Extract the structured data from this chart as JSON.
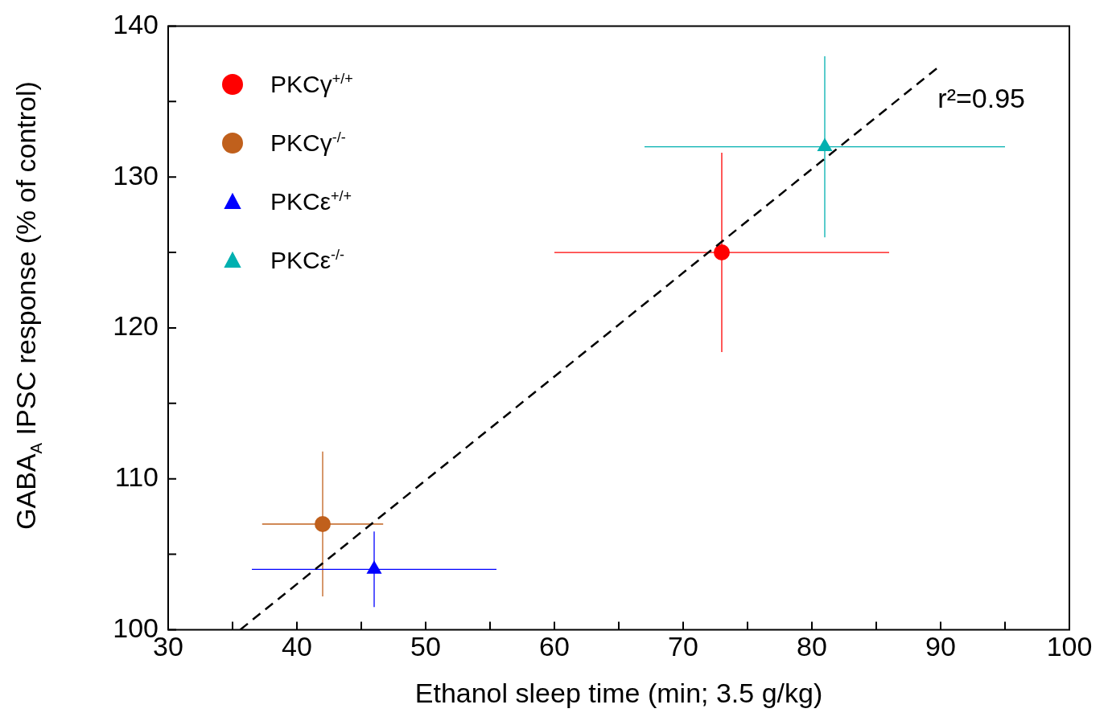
{
  "chart_data": {
    "type": "scatter",
    "xlabel": "Ethanol sleep time (min; 3.5 g/kg)",
    "ylabel": "GABA$_{A}$ IPSC response (% of control)",
    "xlim": [
      30,
      100
    ],
    "ylim": [
      100,
      140
    ],
    "xticks": [
      30,
      {
        "value": 35,
        "label": null
      },
      40,
      {
        "value": 45,
        "label": null
      },
      50,
      {
        "value": 55,
        "label": null
      },
      60,
      {
        "value": 65,
        "label": null
      },
      70,
      {
        "value": 75,
        "label": null
      },
      80,
      {
        "value": 85,
        "label": null
      },
      90,
      {
        "value": 95,
        "label": null
      },
      100
    ],
    "yticks": [
      100,
      {
        "value": 105,
        "label": null
      },
      110,
      {
        "value": 115,
        "label": null
      },
      120,
      {
        "value": 125,
        "label": null
      },
      130,
      {
        "value": 135,
        "label": null
      },
      140
    ],
    "legend": "top left",
    "annotations": [
      "r²=0.95"
    ],
    "series": [
      {
        "name": "PKCγ$^{+/+}$",
        "color": "#ff0000",
        "marker": "circle",
        "x": [
          73
        ],
        "values": [
          125
        ],
        "errors": [
          6.6
        ],
        "xerrors": [
          13
        ]
      },
      {
        "name": "PKCγ$^{-/-}$",
        "color": "#c0601c",
        "marker": "circle",
        "x": [
          42
        ],
        "values": [
          107
        ],
        "errors": [
          4.8
        ],
        "xerrors": [
          4.7
        ]
      },
      {
        "name": "PKCε$^{+/+}$",
        "color": "#0000ff",
        "marker": "triangle",
        "x": [
          46
        ],
        "values": [
          104
        ],
        "errors": [
          2.5
        ],
        "xerrors": [
          9.5
        ]
      },
      {
        "name": "PKCε$^{-/-}$",
        "color": "#00b0b0",
        "marker": "triangle",
        "x": [
          81
        ],
        "values": [
          132
        ],
        "errors": [
          6
        ],
        "xerrors": [
          14
        ]
      },
      {
        "type": "line",
        "color": "#000000",
        "line_style": "dashed",
        "marker": "none",
        "x": [
          35.6,
          90
        ],
        "values": [
          100,
          137.4
        ]
      }
    ]
  }
}
